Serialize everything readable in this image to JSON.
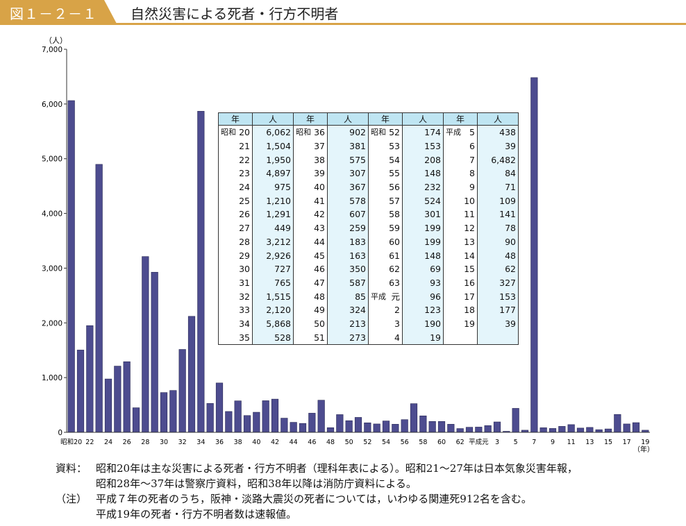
{
  "header": {
    "figure_label": "図１－２－１",
    "title": "自然災害による死者・行方不明者"
  },
  "colors": {
    "bar": "#4d4c8f",
    "accent": "#d8a347",
    "table_header": "#bfe5f2",
    "table_value_bg": "#e4f5fb"
  },
  "chart_data": {
    "type": "bar",
    "ylabel": "（人）",
    "xlabel": "（年）",
    "ylim": [
      0,
      7000
    ],
    "yticks": [
      "0",
      "1,000",
      "2,000",
      "3,000",
      "4,000",
      "5,000",
      "6,000",
      "7,000"
    ],
    "categories": [
      "昭和20",
      "21",
      "22",
      "23",
      "24",
      "25",
      "26",
      "27",
      "28",
      "29",
      "30",
      "31",
      "32",
      "33",
      "34",
      "35",
      "36",
      "37",
      "38",
      "39",
      "40",
      "41",
      "42",
      "43",
      "44",
      "45",
      "46",
      "47",
      "48",
      "49",
      "50",
      "51",
      "52",
      "53",
      "54",
      "55",
      "56",
      "57",
      "58",
      "59",
      "60",
      "61",
      "62",
      "63",
      "平成元",
      "2",
      "3",
      "4",
      "5",
      "6",
      "7",
      "8",
      "9",
      "10",
      "11",
      "12",
      "13",
      "14",
      "15",
      "16",
      "17",
      "18",
      "19"
    ],
    "values": [
      6062,
      1504,
      1950,
      4897,
      975,
      1210,
      1291,
      449,
      3212,
      2926,
      727,
      765,
      1515,
      2120,
      5868,
      528,
      902,
      381,
      575,
      307,
      367,
      578,
      607,
      259,
      183,
      163,
      350,
      587,
      85,
      324,
      213,
      273,
      174,
      153,
      208,
      148,
      232,
      524,
      301,
      199,
      199,
      148,
      69,
      93,
      96,
      123,
      190,
      19,
      438,
      39,
      6482,
      84,
      71,
      109,
      141,
      78,
      90,
      48,
      62,
      327,
      153,
      177,
      39
    ],
    "tick_labels": [
      "昭和20",
      "22",
      "24",
      "26",
      "28",
      "30",
      "32",
      "34",
      "36",
      "38",
      "40",
      "42",
      "44",
      "46",
      "48",
      "50",
      "52",
      "54",
      "56",
      "58",
      "60",
      "62",
      "平成元",
      "3",
      "5",
      "7",
      "9",
      "11",
      "13",
      "15",
      "17",
      "19"
    ],
    "grid": false,
    "legend": "none"
  },
  "table": {
    "headers": [
      "年",
      "人",
      "年",
      "人",
      "年",
      "人",
      "年",
      "人"
    ],
    "rows": [
      [
        {
          "era": "昭和",
          "y": "20",
          "v": "6,062"
        },
        {
          "era": "昭和",
          "y": "36",
          "v": "902"
        },
        {
          "era": "昭和",
          "y": "52",
          "v": "174"
        },
        {
          "era": "平成",
          "y": "5",
          "v": "438"
        }
      ],
      [
        {
          "era": "",
          "y": "21",
          "v": "1,504"
        },
        {
          "era": "",
          "y": "37",
          "v": "381"
        },
        {
          "era": "",
          "y": "53",
          "v": "153"
        },
        {
          "era": "",
          "y": "6",
          "v": "39"
        }
      ],
      [
        {
          "era": "",
          "y": "22",
          "v": "1,950"
        },
        {
          "era": "",
          "y": "38",
          "v": "575"
        },
        {
          "era": "",
          "y": "54",
          "v": "208"
        },
        {
          "era": "",
          "y": "7",
          "v": "6,482"
        }
      ],
      [
        {
          "era": "",
          "y": "23",
          "v": "4,897"
        },
        {
          "era": "",
          "y": "39",
          "v": "307"
        },
        {
          "era": "",
          "y": "55",
          "v": "148"
        },
        {
          "era": "",
          "y": "8",
          "v": "84"
        }
      ],
      [
        {
          "era": "",
          "y": "24",
          "v": "975"
        },
        {
          "era": "",
          "y": "40",
          "v": "367"
        },
        {
          "era": "",
          "y": "56",
          "v": "232"
        },
        {
          "era": "",
          "y": "9",
          "v": "71"
        }
      ],
      [
        {
          "era": "",
          "y": "25",
          "v": "1,210"
        },
        {
          "era": "",
          "y": "41",
          "v": "578"
        },
        {
          "era": "",
          "y": "57",
          "v": "524"
        },
        {
          "era": "",
          "y": "10",
          "v": "109"
        }
      ],
      [
        {
          "era": "",
          "y": "26",
          "v": "1,291"
        },
        {
          "era": "",
          "y": "42",
          "v": "607"
        },
        {
          "era": "",
          "y": "58",
          "v": "301"
        },
        {
          "era": "",
          "y": "11",
          "v": "141"
        }
      ],
      [
        {
          "era": "",
          "y": "27",
          "v": "449"
        },
        {
          "era": "",
          "y": "43",
          "v": "259"
        },
        {
          "era": "",
          "y": "59",
          "v": "199"
        },
        {
          "era": "",
          "y": "12",
          "v": "78"
        }
      ],
      [
        {
          "era": "",
          "y": "28",
          "v": "3,212"
        },
        {
          "era": "",
          "y": "44",
          "v": "183"
        },
        {
          "era": "",
          "y": "60",
          "v": "199"
        },
        {
          "era": "",
          "y": "13",
          "v": "90"
        }
      ],
      [
        {
          "era": "",
          "y": "29",
          "v": "2,926"
        },
        {
          "era": "",
          "y": "45",
          "v": "163"
        },
        {
          "era": "",
          "y": "61",
          "v": "148"
        },
        {
          "era": "",
          "y": "14",
          "v": "48"
        }
      ],
      [
        {
          "era": "",
          "y": "30",
          "v": "727"
        },
        {
          "era": "",
          "y": "46",
          "v": "350"
        },
        {
          "era": "",
          "y": "62",
          "v": "69"
        },
        {
          "era": "",
          "y": "15",
          "v": "62"
        }
      ],
      [
        {
          "era": "",
          "y": "31",
          "v": "765"
        },
        {
          "era": "",
          "y": "47",
          "v": "587"
        },
        {
          "era": "",
          "y": "63",
          "v": "93"
        },
        {
          "era": "",
          "y": "16",
          "v": "327"
        }
      ],
      [
        {
          "era": "",
          "y": "32",
          "v": "1,515"
        },
        {
          "era": "",
          "y": "48",
          "v": "85"
        },
        {
          "era": "平成",
          "y": "元",
          "v": "96"
        },
        {
          "era": "",
          "y": "17",
          "v": "153"
        }
      ],
      [
        {
          "era": "",
          "y": "33",
          "v": "2,120"
        },
        {
          "era": "",
          "y": "49",
          "v": "324"
        },
        {
          "era": "",
          "y": "2",
          "v": "123"
        },
        {
          "era": "",
          "y": "18",
          "v": "177"
        }
      ],
      [
        {
          "era": "",
          "y": "34",
          "v": "5,868"
        },
        {
          "era": "",
          "y": "50",
          "v": "213"
        },
        {
          "era": "",
          "y": "3",
          "v": "190"
        },
        {
          "era": "",
          "y": "19",
          "v": "39"
        }
      ],
      [
        {
          "era": "",
          "y": "35",
          "v": "528"
        },
        {
          "era": "",
          "y": "51",
          "v": "273"
        },
        {
          "era": "",
          "y": "4",
          "v": "19"
        },
        {
          "era": "",
          "y": "",
          "v": ""
        }
      ]
    ]
  },
  "notes": {
    "source_label": "資料：",
    "source_line1": "昭和20年は主な災害による死者・行方不明者（理科年表による）。昭和21～27年は日本気象災害年報，",
    "source_line2": "昭和28年～37年は警察庁資料，昭和38年以降は消防庁資料による。",
    "note_label": "（注）",
    "note_line1": "平成７年の死者のうち，阪神・淡路大震災の死者については，いわゆる関連死912名を含む。",
    "note_line2": "平成19年の死者・行方不明者数は速報値。"
  }
}
